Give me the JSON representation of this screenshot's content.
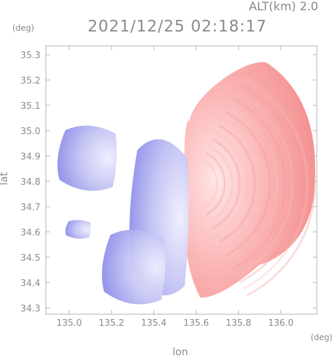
{
  "header": {
    "altitude": "ALT(km) 2.0",
    "timestamp": "2021/12/25 02:18:17"
  },
  "axis_units": {
    "y": "(deg)",
    "x": "(deg)"
  },
  "chart_data": {
    "type": "heatmap",
    "title": "2021/12/25 02:18:17",
    "subtitle": "ALT(km) 2.0",
    "xlabel": "lon",
    "ylabel": "lat",
    "x_unit": "(deg)",
    "y_unit": "(deg)",
    "xlim": [
      134.89,
      136.17
    ],
    "ylim": [
      34.275,
      35.335
    ],
    "x_ticks": [
      "135.0",
      "135.2",
      "135.4",
      "135.6",
      "135.8",
      "136.0"
    ],
    "y_ticks": [
      "34.3",
      "34.4",
      "34.5",
      "34.6",
      "34.7",
      "34.8",
      "34.9",
      "35.0",
      "35.1",
      "35.2",
      "35.3"
    ],
    "grid": false,
    "colors": {
      "toward": "#7d7de8",
      "away": "#f07a7a",
      "neutral": "#ffffff"
    },
    "field": {
      "description": "Doppler velocity field: blue (toward radar) to the west, red (away) to the east",
      "radar_center": {
        "lon": 135.57,
        "lat": 34.79
      },
      "blue_regions": [
        {
          "lon": [
            135.28,
            135.56
          ],
          "lat": [
            34.32,
            34.99
          ]
        },
        {
          "lon": [
            134.94,
            135.22
          ],
          "lat": [
            34.75,
            35.03
          ]
        },
        {
          "lon": [
            134.98,
            135.1
          ],
          "lat": [
            34.57,
            34.65
          ]
        },
        {
          "lon": [
            135.15,
            135.45
          ],
          "lat": [
            34.3,
            34.62
          ]
        }
      ],
      "red_regions": [
        {
          "lon": [
            135.55,
            136.16
          ],
          "lat": [
            34.34,
            35.27
          ]
        }
      ]
    }
  }
}
